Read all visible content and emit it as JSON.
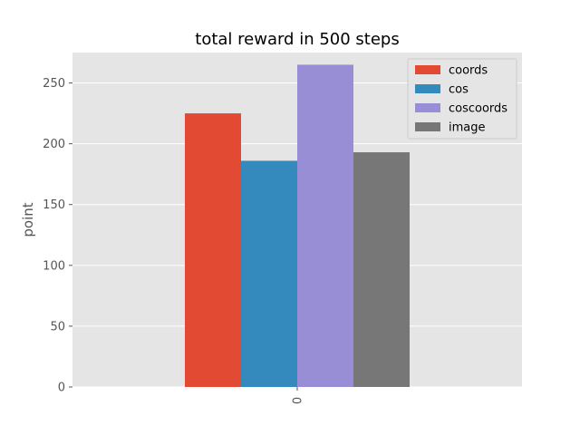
{
  "chart_data": {
    "type": "bar",
    "title": "total reward in 500 steps",
    "xlabel": "",
    "ylabel": "point",
    "categories": [
      "0"
    ],
    "series": [
      {
        "name": "coords",
        "values": [
          225
        ],
        "color": "#E24A33"
      },
      {
        "name": "cos",
        "values": [
          186
        ],
        "color": "#348ABD"
      },
      {
        "name": "coscoords",
        "values": [
          265
        ],
        "color": "#988ED5"
      },
      {
        "name": "image",
        "values": [
          193
        ],
        "color": "#777777"
      }
    ],
    "ylim": [
      0,
      275
    ],
    "yticks": [
      0,
      50,
      100,
      150,
      200,
      250
    ],
    "grid": true,
    "legend_position": "top-right",
    "background_color": "#E5E5E5",
    "grid_color": "#FFFFFF"
  }
}
